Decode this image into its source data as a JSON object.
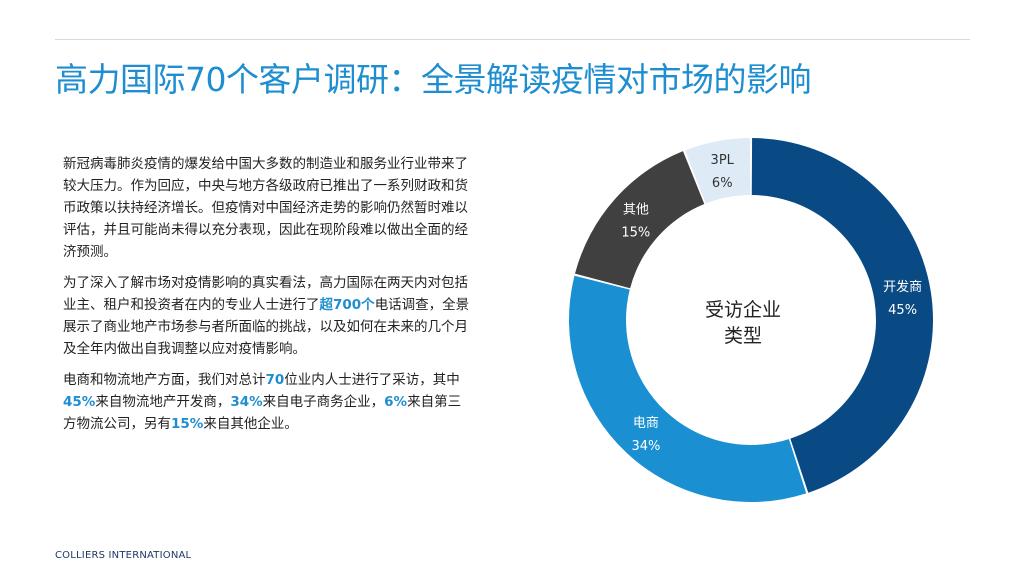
{
  "page": {
    "title": "高力国际70个客户调研：全景解读疫情对市场的影响",
    "footer": "COLLIERS INTERNATIONAL"
  },
  "body": {
    "p1": "新冠病毒肺炎疫情的爆发给中国大多数的制造业和服务业行业带来了较大压力。作为回应，中央与地方各级政府已推出了一系列财政和货币政策以扶持经济增长。但疫情对中国经济走势的影响仍然暂时难以评估，并且可能尚未得以充分表现，因此在现阶段难以做出全面的经济预测。",
    "p2": {
      "a": "为了深入了解市场对疫情影响的真实看法，高力国际在两天内对包括业主、租户和投资者在内的专业人士进行了",
      "hl": "超700个",
      "b": "电话调查，全景展示了商业地产市场参与者所面临的挑战，以及如何在未来的几个月及全年内做出自我调整以应对疫情影响。"
    },
    "p3": {
      "a": "电商和物流地产方面，我们对总计",
      "hl1": "70",
      "b": "位业内人士进行了采访，其中",
      "hl2": "45%",
      "c": "来自物流地产开发商，",
      "hl3": "34%",
      "d": "来自电子商务企业，",
      "hl4": "6%",
      "e": "来自第三方物流公司，另有",
      "hl5": "15%",
      "f": "来自其他企业。"
    }
  },
  "colors": {
    "accent": "#1f8ed0",
    "navy": "#1f3864"
  },
  "chart_data": {
    "type": "pie",
    "style": "donut",
    "center_label_line1": "受访企业",
    "center_label_line2": "类型",
    "slices": [
      {
        "label": "开发商",
        "value": 45,
        "display": "45%",
        "color": "#0a4a84",
        "text_color": "#ffffff"
      },
      {
        "label": "电商",
        "value": 34,
        "display": "34%",
        "color": "#1a8fd2",
        "text_color": "#ffffff"
      },
      {
        "label": "其他",
        "value": 15,
        "display": "15%",
        "color": "#404040",
        "text_color": "#ffffff"
      },
      {
        "label": "3PL",
        "value": 6,
        "display": "6%",
        "color": "#deebf7",
        "text_color": "#333333"
      }
    ]
  }
}
